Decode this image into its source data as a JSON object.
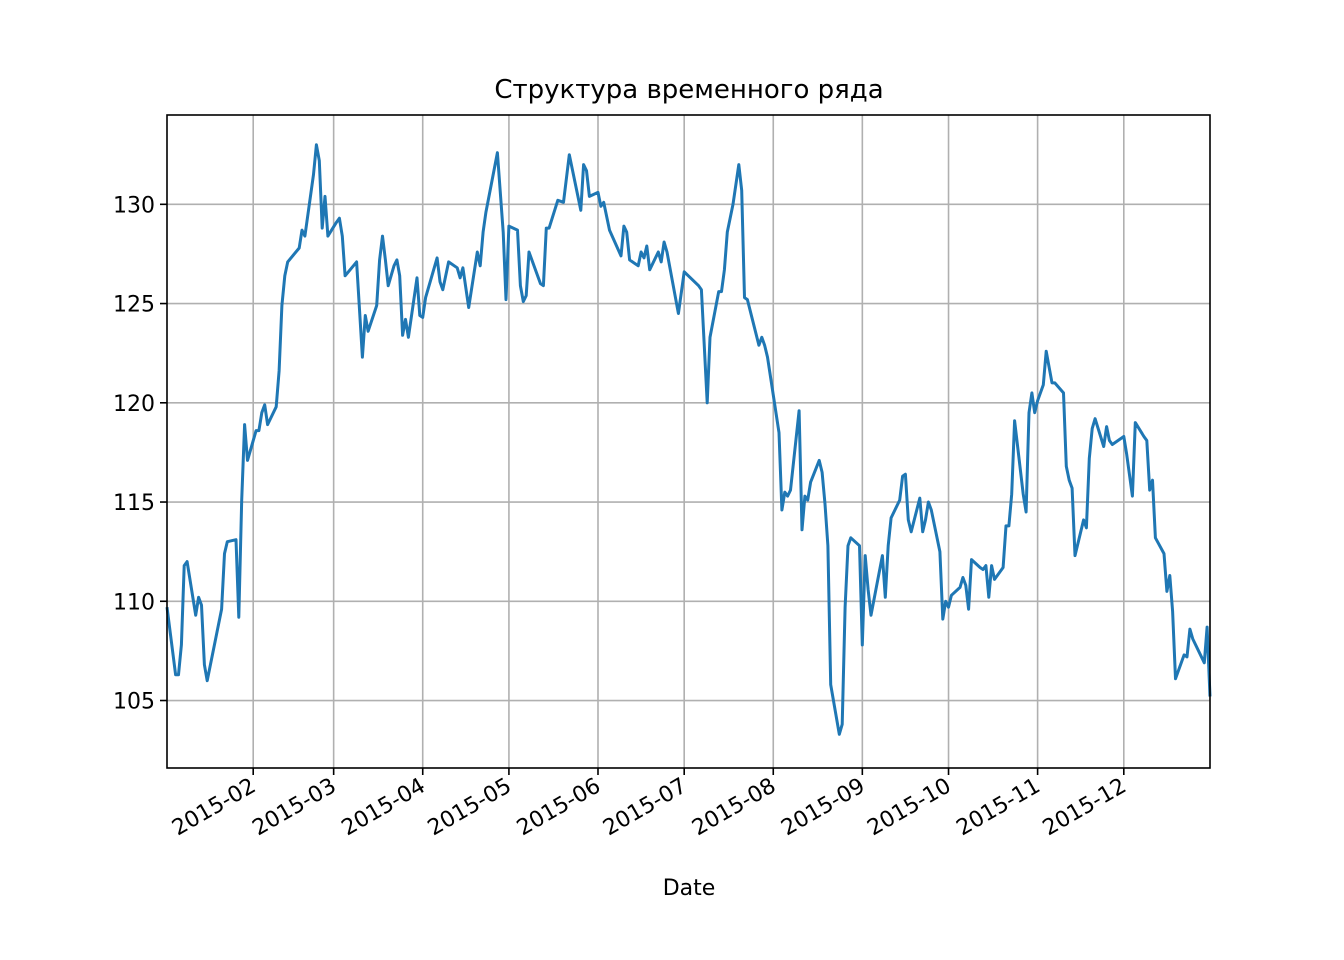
{
  "chart_data": {
    "type": "line",
    "title": "Структура временного ряда",
    "x_label": "Date",
    "x": [
      1,
      4,
      5,
      6,
      7,
      8,
      11,
      12,
      13,
      14,
      15,
      20,
      21,
      22,
      25,
      26,
      27,
      28,
      29,
      32,
      33,
      34,
      35,
      36,
      39,
      40,
      41,
      42,
      43,
      47,
      48,
      49,
      52,
      53,
      54,
      55,
      56,
      57,
      60,
      61,
      62,
      63,
      67,
      69,
      70,
      71,
      74,
      75,
      76,
      77,
      78,
      80,
      81,
      82,
      83,
      84,
      85,
      88,
      89,
      90,
      91,
      95,
      96,
      97,
      99,
      102,
      103,
      104,
      106,
      109,
      110,
      111,
      112,
      116,
      118,
      119,
      120,
      123,
      124,
      125,
      126,
      127,
      131,
      132,
      133,
      134,
      137,
      139,
      141,
      145,
      146,
      147,
      148,
      151,
      152,
      153,
      155,
      159,
      160,
      161,
      162,
      165,
      166,
      167,
      168,
      169,
      172,
      173,
      174,
      175,
      179,
      181,
      186,
      187,
      189,
      190,
      193,
      194,
      195,
      196,
      198,
      200,
      201,
      202,
      203,
      207,
      208,
      209,
      210,
      214,
      215,
      216,
      217,
      218,
      221,
      222,
      223,
      224,
      225,
      228,
      229,
      230,
      231,
      232,
      235,
      236,
      237,
      238,
      239,
      242,
      243,
      244,
      245,
      246,
      250,
      251,
      252,
      253,
      256,
      257,
      258,
      259,
      260,
      263,
      264,
      265,
      266,
      267,
      270,
      271,
      272,
      273,
      274,
      277,
      278,
      279,
      280,
      281,
      284,
      285,
      286,
      287,
      288,
      289,
      292,
      293,
      294,
      295,
      296,
      299,
      300,
      301,
      302,
      303,
      304,
      306,
      307,
      308,
      309,
      310,
      313,
      314,
      315,
      316,
      317,
      320,
      321,
      322,
      323,
      324,
      327,
      328,
      329,
      330,
      334,
      335,
      337,
      338,
      341,
      342,
      343,
      344,
      345,
      348,
      349,
      350,
      351,
      352,
      355,
      356,
      357,
      358,
      362,
      363,
      364
    ],
    "values": [
      109.7,
      106.3,
      106.3,
      107.8,
      111.8,
      112.0,
      109.3,
      110.2,
      109.8,
      106.8,
      106.0,
      109.6,
      112.4,
      113.0,
      113.1,
      109.2,
      115.1,
      118.9,
      117.1,
      118.6,
      118.6,
      119.5,
      119.9,
      118.9,
      119.8,
      121.6,
      124.9,
      126.4,
      127.1,
      127.8,
      128.7,
      128.4,
      131.5,
      133.0,
      132.2,
      128.8,
      130.4,
      128.4,
      129.1,
      129.3,
      128.4,
      126.4,
      127.1,
      122.3,
      124.4,
      123.6,
      124.9,
      127.2,
      128.4,
      127.2,
      125.9,
      126.9,
      127.2,
      126.4,
      123.4,
      124.2,
      123.3,
      126.3,
      124.4,
      124.3,
      125.3,
      127.3,
      126.1,
      125.7,
      127.1,
      126.8,
      126.3,
      126.8,
      124.8,
      127.6,
      126.9,
      128.6,
      129.6,
      132.6,
      128.6,
      125.2,
      128.9,
      128.7,
      125.9,
      125.1,
      125.4,
      127.6,
      126.0,
      125.9,
      128.8,
      128.8,
      130.2,
      130.1,
      132.5,
      129.7,
      132.0,
      131.7,
      130.4,
      130.6,
      129.9,
      130.1,
      128.7,
      127.4,
      128.9,
      128.6,
      127.2,
      126.9,
      127.6,
      127.3,
      127.9,
      126.7,
      127.6,
      127.1,
      128.1,
      127.6,
      124.5,
      126.6,
      125.9,
      125.7,
      120.0,
      123.3,
      125.6,
      125.6,
      126.7,
      128.6,
      130.0,
      132.0,
      130.7,
      125.3,
      125.2,
      122.9,
      123.3,
      122.9,
      122.3,
      118.5,
      114.6,
      115.5,
      115.3,
      115.6,
      119.6,
      113.6,
      115.3,
      115.1,
      116.0,
      117.1,
      116.5,
      114.9,
      112.8,
      105.8,
      103.3,
      103.8,
      109.7,
      112.8,
      113.2,
      112.8,
      107.8,
      112.3,
      110.6,
      109.3,
      112.3,
      110.2,
      112.8,
      114.2,
      115.1,
      116.3,
      116.4,
      114.1,
      113.5,
      115.2,
      113.5,
      114.1,
      115.0,
      114.6,
      112.5,
      109.1,
      110.0,
      109.7,
      110.3,
      110.7,
      111.2,
      110.8,
      109.6,
      112.1,
      111.7,
      111.6,
      111.8,
      110.2,
      111.8,
      111.1,
      111.7,
      113.8,
      113.8,
      115.4,
      119.1,
      115.4,
      114.5,
      119.5,
      120.5,
      119.5,
      120.1,
      120.9,
      122.6,
      121.8,
      121.0,
      121.0,
      120.5,
      116.8,
      116.1,
      115.7,
      112.3,
      114.1,
      113.7,
      117.2,
      118.7,
      119.2,
      117.8,
      118.8,
      118.1,
      117.9,
      118.3,
      117.4,
      115.3,
      119.0,
      118.3,
      118.1,
      115.6,
      116.1,
      113.2,
      112.4,
      110.5,
      111.3,
      109.5,
      106.1,
      107.3,
      107.2,
      108.6,
      108.1,
      106.9,
      108.7,
      105.2
    ],
    "color": "#1f77b4",
    "xlim": [
      1,
      364
    ],
    "xticks": [
      {
        "value": 31,
        "label": "2015-02"
      },
      {
        "value": 59,
        "label": "2015-03"
      },
      {
        "value": 90,
        "label": "2015-04"
      },
      {
        "value": 120,
        "label": "2015-05"
      },
      {
        "value": 151,
        "label": "2015-06"
      },
      {
        "value": 181,
        "label": "2015-07"
      },
      {
        "value": 212,
        "label": "2015-08"
      },
      {
        "value": 243,
        "label": "2015-09"
      },
      {
        "value": 273,
        "label": "2015-10"
      },
      {
        "value": 304,
        "label": "2015-11"
      },
      {
        "value": 334,
        "label": "2015-12"
      }
    ],
    "ylim": [
      101.6,
      134.5
    ],
    "yticks": [
      105,
      110,
      115,
      120,
      125,
      130
    ],
    "grid": true
  }
}
